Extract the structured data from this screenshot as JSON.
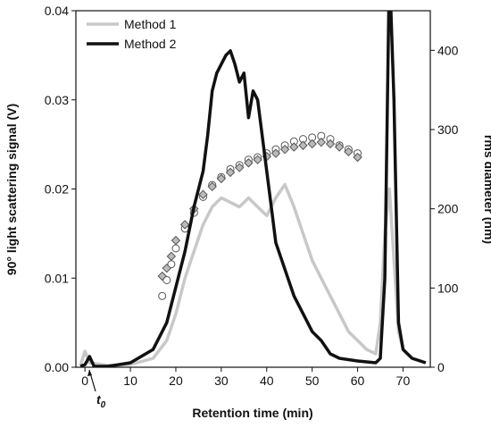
{
  "chart_data": {
    "type": "line",
    "xlabel": "Retention time (min)",
    "ylabel": "90° light scattering signal (V)",
    "y2label": "rms diameter (nm)",
    "annotation": {
      "text": "t",
      "subscript": "0"
    },
    "xlim": [
      -2,
      76
    ],
    "xticks": [
      0,
      10,
      20,
      30,
      40,
      50,
      60,
      70
    ],
    "ylim": [
      0,
      0.04
    ],
    "yticks": [
      {
        "value": 0,
        "label": "0.00"
      },
      {
        "value": 0.01,
        "label": "0.01"
      },
      {
        "value": 0.02,
        "label": "0.02"
      },
      {
        "value": 0.03,
        "label": "0.03"
      },
      {
        "value": 0.04,
        "label": "0.04"
      }
    ],
    "y2lim": [
      0,
      450
    ],
    "y2ticks": [
      0,
      100,
      200,
      300,
      400
    ],
    "legend": "top-left",
    "series": [
      {
        "name": "Method 1",
        "color": "#c8c8c8",
        "kind": "line",
        "x": [
          -1,
          0,
          1,
          5,
          10,
          15,
          18,
          20,
          22,
          24,
          26,
          28,
          30,
          32,
          34,
          36,
          38,
          40,
          42,
          44,
          46,
          48,
          50,
          52,
          54,
          56,
          58,
          60,
          62,
          64,
          65,
          66,
          67,
          68,
          69,
          70,
          72,
          75
        ],
        "values": [
          0.0002,
          0.0018,
          0.0005,
          0.0002,
          0.0003,
          0.001,
          0.003,
          0.006,
          0.01,
          0.013,
          0.016,
          0.018,
          0.019,
          0.0185,
          0.018,
          0.019,
          0.018,
          0.017,
          0.019,
          0.0205,
          0.018,
          0.015,
          0.012,
          0.01,
          0.008,
          0.006,
          0.004,
          0.003,
          0.002,
          0.0015,
          0.005,
          0.015,
          0.02,
          0.012,
          0.004,
          0.002,
          0.001,
          0.0005
        ]
      },
      {
        "name": "Method 2",
        "color": "#111111",
        "kind": "line",
        "x": [
          -1,
          0,
          1,
          2,
          5,
          10,
          15,
          18,
          20,
          22,
          24,
          26,
          27,
          28,
          29,
          30,
          31,
          32,
          33,
          34,
          35,
          36,
          37,
          38,
          39,
          40,
          41,
          42,
          44,
          46,
          48,
          50,
          52,
          54,
          56,
          60,
          64,
          65,
          66,
          67,
          68,
          69,
          70,
          72,
          75
        ],
        "values": [
          0.0001,
          0.0003,
          0.0012,
          0.0001,
          0.0001,
          0.0005,
          0.002,
          0.005,
          0.009,
          0.013,
          0.018,
          0.022,
          0.026,
          0.031,
          0.033,
          0.034,
          0.035,
          0.0355,
          0.034,
          0.032,
          0.033,
          0.028,
          0.031,
          0.03,
          0.026,
          0.022,
          0.018,
          0.014,
          0.011,
          0.008,
          0.006,
          0.004,
          0.003,
          0.0015,
          0.001,
          0.0007,
          0.0005,
          0.001,
          0.01,
          0.045,
          0.03,
          0.005,
          0.002,
          0.001,
          0.0005
        ]
      },
      {
        "color": "#555555",
        "kind": "scatter",
        "marker": "circle",
        "axis": "y2",
        "x": [
          17,
          18,
          19,
          20,
          22,
          24,
          26,
          28,
          30,
          32,
          34,
          36,
          38,
          40,
          42,
          44,
          46,
          48,
          50,
          52,
          54,
          56,
          58,
          60
        ],
        "values": [
          90,
          110,
          130,
          150,
          175,
          195,
          215,
          230,
          240,
          250,
          255,
          262,
          265,
          270,
          275,
          280,
          285,
          288,
          290,
          292,
          288,
          280,
          275,
          270
        ]
      },
      {
        "color": "#555555",
        "kind": "scatter",
        "marker": "diamond",
        "axis": "y2",
        "x": [
          17,
          18,
          19,
          20,
          22,
          24,
          26,
          28,
          30,
          32,
          34,
          36,
          38,
          40,
          42,
          44,
          46,
          48,
          50,
          52,
          54,
          56,
          58,
          60
        ],
        "values": [
          115,
          125,
          140,
          160,
          180,
          200,
          218,
          228,
          238,
          246,
          252,
          258,
          262,
          266,
          270,
          275,
          278,
          280,
          282,
          284,
          282,
          278,
          272,
          265
        ]
      }
    ]
  }
}
